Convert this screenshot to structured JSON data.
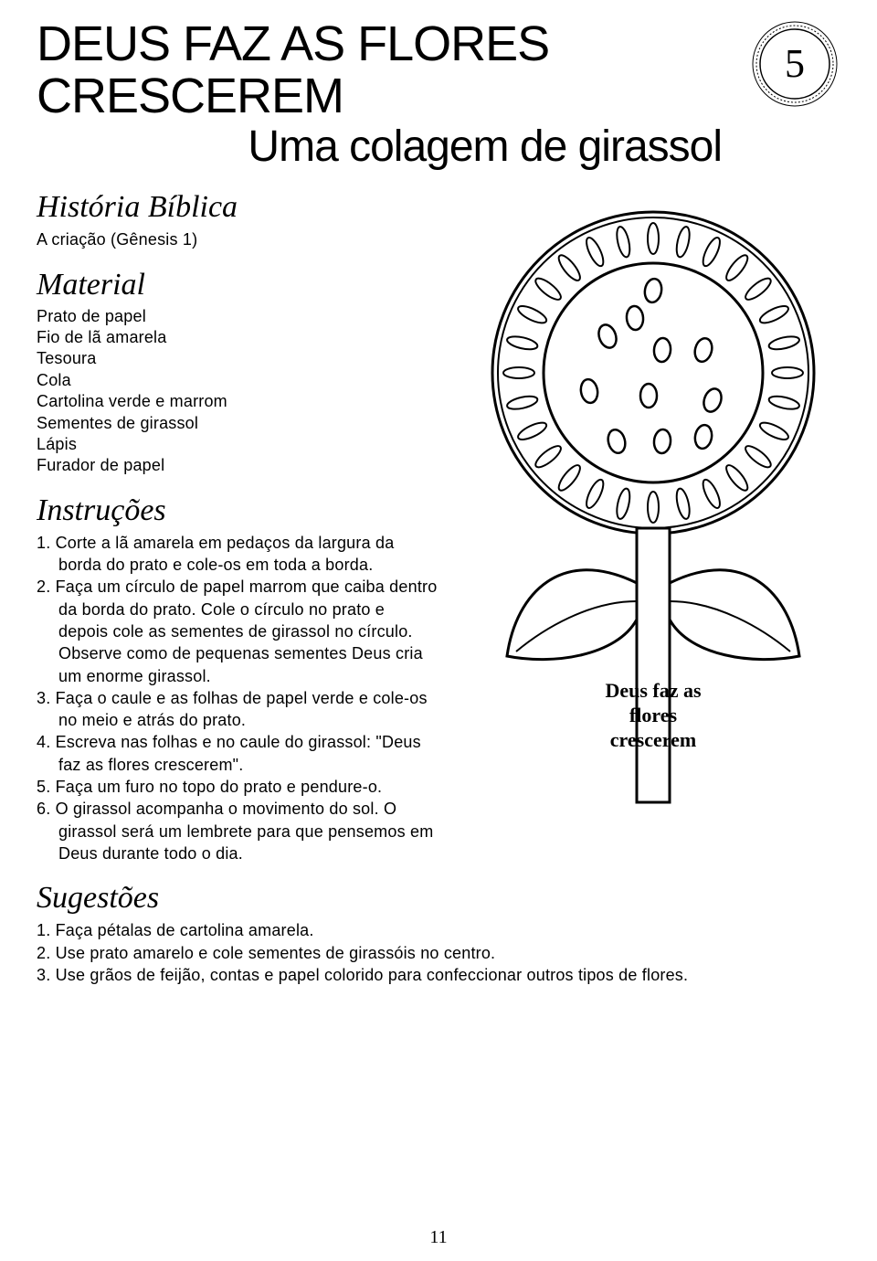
{
  "header": {
    "title": "DEUS FAZ AS FLORES CRESCEREM",
    "subtitle": "Uma colagem de girassol",
    "badge_number": "5"
  },
  "historia": {
    "heading": "História Bíblica",
    "text": "A criação (Gênesis 1)"
  },
  "material": {
    "heading": "Material",
    "items": [
      "Prato de papel",
      "Fio de lã amarela",
      "Tesoura",
      "Cola",
      "Cartolina verde e marrom",
      "Sementes de girassol",
      "Lápis",
      "Furador de papel"
    ]
  },
  "instrucoes": {
    "heading": "Instruções",
    "steps": [
      "1. Corte a lã amarela em pedaços da largura da borda do prato e cole-os em toda a borda.",
      "2. Faça um círculo de papel marrom que caiba dentro da borda do prato. Cole o círculo no prato e depois cole as sementes de girassol no círculo. Observe como de pequenas sementes Deus cria um enorme girassol.",
      "3. Faça o caule e as folhas de papel verde e cole-os no meio e atrás do prato.",
      "4. Escreva nas folhas e no caule do girassol: \"Deus faz as flores crescerem\".",
      "5. Faça um furo no topo do prato e pendure-o.",
      "6. O girassol acompanha o movimento do sol. O girassol será um lembrete para que pensemos em Deus durante todo o dia."
    ]
  },
  "sugestoes": {
    "heading": "Sugestões",
    "items": [
      "1. Faça pétalas de cartolina amarela.",
      "2. Use prato amarelo e cole sementes de girassóis no centro.",
      "3. Use grãos de feijão, contas e papel colorido para confeccionar outros tipos de flores."
    ]
  },
  "illustration": {
    "caption_line1": "Deus faz as",
    "caption_line2": "flores",
    "caption_line3": "crescerem",
    "colors": {
      "outline": "#000000",
      "fill": "#ffffff"
    }
  },
  "page_number": "11"
}
